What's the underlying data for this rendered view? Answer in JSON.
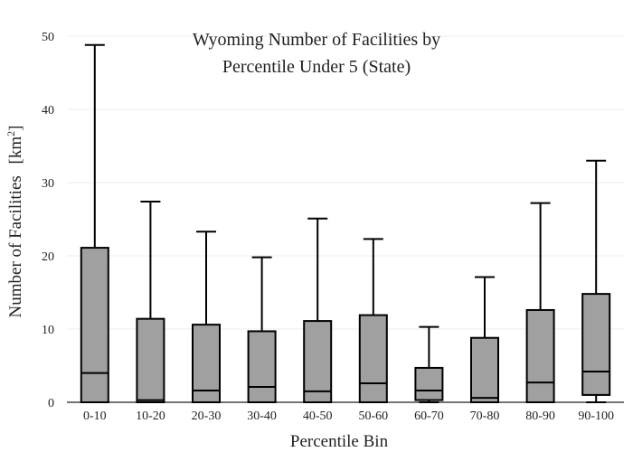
{
  "chart_data": {
    "type": "box",
    "title": [
      "Wyoming Number of Facilities by",
      "Percentile Under 5 (State)"
    ],
    "xlabel": "Percentile Bin",
    "ylabel": "Number of Facilities",
    "ylabel_unit": "[km²]",
    "ylim": [
      0,
      50
    ],
    "yticks": [
      0,
      10,
      20,
      30,
      40,
      50
    ],
    "grid": true,
    "box_color": "#a0a0a0",
    "line_color": "#000000",
    "categories": [
      "0-10",
      "10-20",
      "20-30",
      "30-40",
      "40-50",
      "50-60",
      "60-70",
      "70-80",
      "80-90",
      "90-100"
    ],
    "boxes": [
      {
        "min": 0,
        "q1": 0,
        "median": 4.0,
        "q3": 21.1,
        "max": 48.8
      },
      {
        "min": 0,
        "q1": 0,
        "median": 0.3,
        "q3": 11.4,
        "max": 27.4
      },
      {
        "min": 0,
        "q1": 0,
        "median": 1.6,
        "q3": 10.6,
        "max": 23.3
      },
      {
        "min": 0,
        "q1": 0,
        "median": 2.1,
        "q3": 9.7,
        "max": 19.8
      },
      {
        "min": 0,
        "q1": 0,
        "median": 1.5,
        "q3": 11.1,
        "max": 25.1
      },
      {
        "min": 0,
        "q1": 0,
        "median": 2.6,
        "q3": 11.9,
        "max": 22.3
      },
      {
        "min": 0,
        "q1": 0.3,
        "median": 1.6,
        "q3": 4.7,
        "max": 10.3
      },
      {
        "min": 0,
        "q1": 0,
        "median": 0.6,
        "q3": 8.8,
        "max": 17.1
      },
      {
        "min": 0,
        "q1": 0,
        "median": 2.7,
        "q3": 12.6,
        "max": 27.2
      },
      {
        "min": 0,
        "q1": 1.0,
        "median": 4.2,
        "q3": 14.8,
        "max": 33.0
      }
    ]
  }
}
